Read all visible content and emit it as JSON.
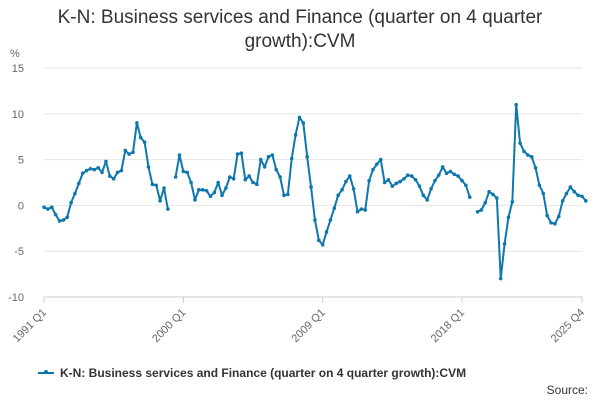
{
  "title_line1": "K-N: Business services and Finance (quarter on 4 quarter",
  "title_line2": "growth):CVM",
  "source": "Source:",
  "colors": {
    "series": "#0e77ad",
    "grid": "#e6e6e6",
    "axis": "#cccccc",
    "text": "#666666"
  },
  "chart_data": {
    "type": "line",
    "title": "K-N: Business services and Finance (quarter on 4 quarter growth):CVM",
    "ylabel": "%",
    "ylim": [
      -10,
      15
    ],
    "yticks": [
      -10,
      -5,
      0,
      5,
      10,
      15
    ],
    "xticks": [
      "1991 Q1",
      "2000 Q1",
      "2009 Q1",
      "2018 Q1",
      "2025 Q4"
    ],
    "grid": true,
    "legend": "bottom-left",
    "series": [
      {
        "name": "K-N: Business services and Finance (quarter on 4 quarter growth):CVM",
        "segments": [
          {
            "start": "1991 Q1",
            "values": [
              -0.2,
              -0.4,
              -0.2,
              -1.0,
              -1.7,
              -1.6,
              -1.3,
              0.3,
              1.3,
              2.4,
              3.5,
              3.8,
              4.0,
              3.9,
              4.1,
              3.6,
              4.8,
              3.2,
              2.9,
              3.6,
              3.8,
              6.0,
              5.6,
              5.8,
              9.0,
              7.4,
              6.9,
              4.2,
              2.3,
              2.2,
              0.5,
              1.9,
              -0.4
            ]
          },
          {
            "start": "1999 Q3",
            "values": [
              3.1,
              5.5,
              3.7,
              3.6,
              2.5,
              0.6,
              1.7,
              1.7,
              1.6,
              1.0,
              1.4,
              2.5,
              1.1,
              1.9,
              3.1,
              2.9,
              5.6,
              5.7,
              2.8,
              3.2,
              2.5,
              2.3,
              5.0,
              4.2,
              5.3,
              5.5,
              3.9,
              3.1,
              1.1,
              1.2,
              5.1,
              7.7,
              9.6,
              9.0,
              5.3,
              2.0,
              -1.6,
              -3.8,
              -4.3,
              -2.9,
              -1.6,
              -0.3,
              1.1,
              1.7,
              2.6,
              3.2,
              1.8,
              -0.7,
              -0.4,
              -0.5,
              2.7,
              3.9,
              4.5,
              5.0,
              2.5,
              2.8,
              2.1,
              2.4,
              2.6,
              2.9,
              3.3,
              3.2,
              2.8,
              2.1,
              1.1,
              0.6,
              1.8,
              2.7,
              3.3,
              4.2,
              3.5,
              3.7,
              3.4,
              3.2,
              2.7,
              2.2,
              0.9
            ]
          },
          {
            "start": "2019 Q1",
            "values": [
              -0.7,
              -0.5,
              0.3,
              1.5,
              1.2,
              0.8,
              -8.0,
              -4.2,
              -1.3,
              0.4,
              11.0,
              6.8,
              5.9,
              5.5,
              5.3,
              4.1,
              2.2,
              1.3,
              -1.1,
              -1.9,
              -2.0,
              -1.2,
              0.5,
              1.3,
              2.0,
              1.5,
              1.1,
              1.0,
              0.5
            ]
          }
        ]
      }
    ]
  }
}
